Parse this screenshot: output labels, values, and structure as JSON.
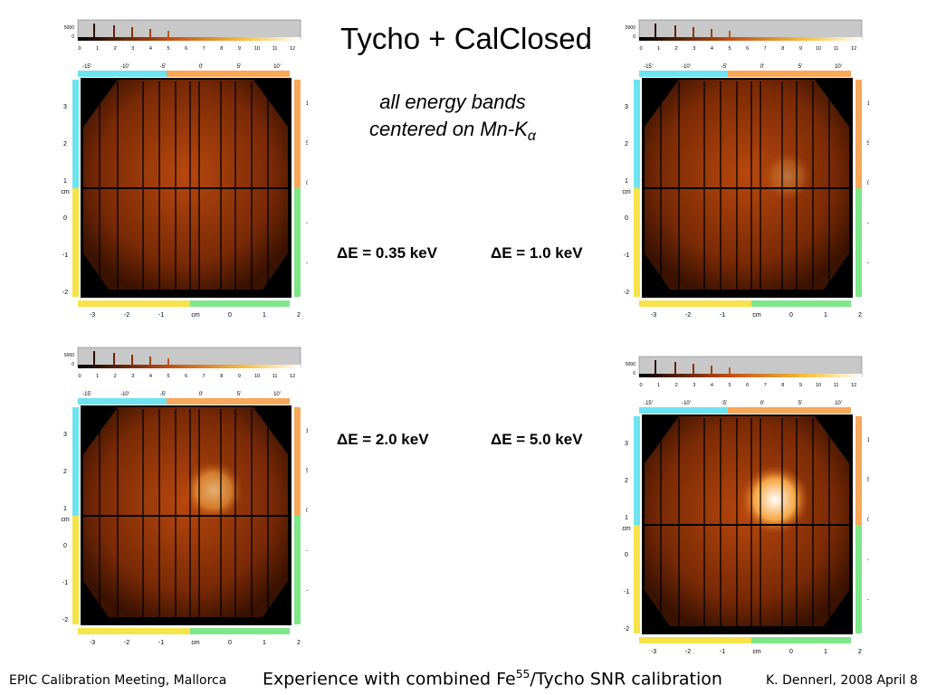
{
  "title": "Tycho + CalClosed",
  "subtitle_line1": "all energy bands",
  "subtitle_line2_prefix": "centered on Mn-K",
  "subtitle_alpha": "α",
  "labels": {
    "de_035": "ΔE = 0.35 keV",
    "de_10": "ΔE = 1.0 keV",
    "de_20": "ΔE = 2.0 keV",
    "de_50": "ΔE = 5.0 keV"
  },
  "axes": {
    "scale_top": [
      "0",
      "1",
      "2",
      "3",
      "4",
      "5",
      "6",
      "7",
      "8",
      "9",
      "10",
      "11",
      "12"
    ],
    "scale_y": [
      "5000",
      "0"
    ],
    "arcmin_top": [
      "-15'",
      "-10'",
      "-5'",
      "0'",
      "5'",
      "10'"
    ],
    "arcmin_right": [
      "10'",
      "5'",
      "0'",
      "-5'",
      "-10'"
    ],
    "cm_left": [
      "3",
      "2",
      "1",
      "0",
      "-1",
      "-2",
      "-3"
    ],
    "cm_bottom": [
      "-3",
      "-2",
      "-1",
      "cm",
      "0",
      "1",
      "2"
    ],
    "cm_label": "cm"
  },
  "colors": {
    "cyan": "#6fe3ef",
    "orange": "#f7a85a",
    "yellow": "#f7e34a",
    "green": "#7fe68a",
    "hist_bg": "#c8c8c8"
  },
  "footer": {
    "left": "EPIC Calibration Meeting, Mallorca",
    "center_prefix": "Experience with combined Fe",
    "center_sup": "55",
    "center_suffix": "/Tycho SNR calibration",
    "right": "K. Dennerl, 2008 April 8"
  }
}
